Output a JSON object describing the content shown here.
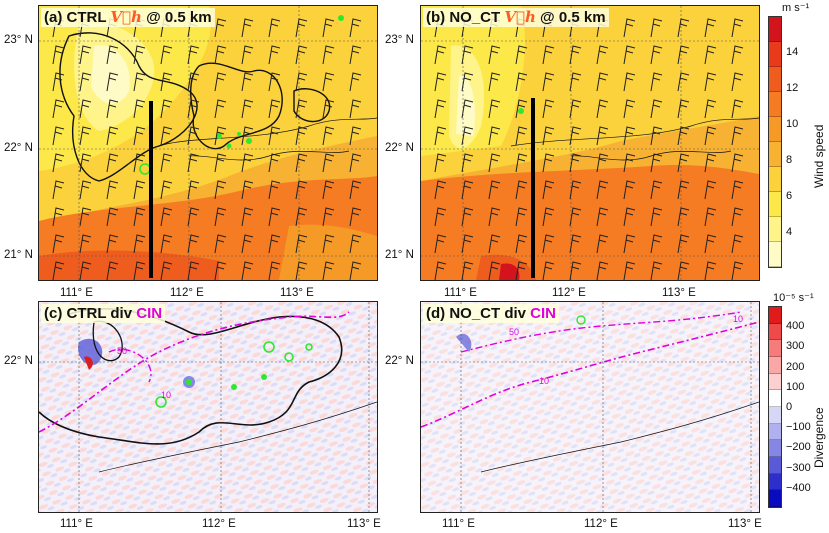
{
  "panels": {
    "a": {
      "label": "(a) CTRL ",
      "vh": "V⃗h",
      "suffix": " @ 0.5 km"
    },
    "b": {
      "label": "(b) NO_CT ",
      "vh": "V⃗h",
      "suffix": " @ 0.5 km"
    },
    "c": {
      "label": "(c) CTRL div ",
      "cin": "CIN"
    },
    "d": {
      "label": "(d) NO_CT div ",
      "cin": "CIN"
    }
  },
  "top_axes": {
    "lat": [
      "23° N",
      "22° N",
      "21° N"
    ],
    "lon": [
      "111° E",
      "112° E",
      "113° E"
    ]
  },
  "bottom_axes": {
    "lat": [
      "22° N"
    ],
    "lon": [
      "111° E",
      "112° E",
      "113° E"
    ]
  },
  "contour_labels": {
    "c": [
      "50",
      "10"
    ],
    "d": [
      "50",
      "10",
      "10"
    ]
  },
  "colorbar_top": {
    "unit": "m s⁻¹",
    "title": "Wind speed",
    "ticks": [
      "14",
      "12",
      "10",
      "8",
      "6",
      "4"
    ],
    "colors": [
      "#d3141d",
      "#ea3a1c",
      "#ee5c1e",
      "#f57c22",
      "#f59a27",
      "#f8b233",
      "#fbd13c",
      "#fde84a",
      "#fef48a",
      "#fefbc6"
    ]
  },
  "colorbar_bottom": {
    "unit": "10⁻⁵ s⁻¹",
    "title": "Divergence",
    "ticks": [
      "400",
      "300",
      "200",
      "100",
      "0",
      "−100",
      "−200",
      "−300",
      "−400"
    ],
    "colors": [
      "#e11b1b",
      "#ef4a4a",
      "#f67c7c",
      "#f9a7a7",
      "#fcd0d0",
      "#ffffff",
      "#d6d6f6",
      "#b0b0ee",
      "#8686e4",
      "#5a5ad8",
      "#2e2ecb",
      "#0a0abf"
    ]
  }
}
